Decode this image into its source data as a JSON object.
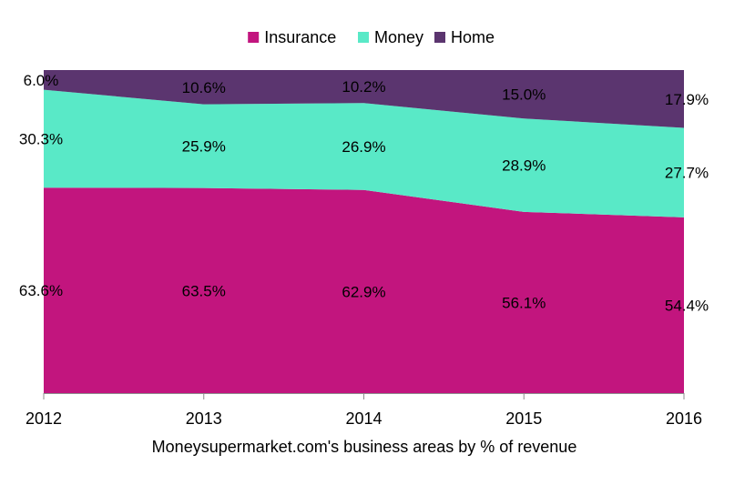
{
  "chart_data": {
    "type": "area",
    "stacked": true,
    "percent_stacked": true,
    "categories": [
      "2012",
      "2013",
      "2014",
      "2015",
      "2016"
    ],
    "series": [
      {
        "name": "Insurance",
        "color": "#C2157E",
        "values": [
          63.6,
          63.5,
          62.9,
          56.1,
          54.4
        ],
        "labels": [
          "63.6%",
          "63.5%",
          "62.9%",
          "56.1%",
          "54.4%"
        ]
      },
      {
        "name": "Money",
        "color": "#59E9C7",
        "values": [
          30.3,
          25.9,
          26.9,
          28.9,
          27.7
        ],
        "labels": [
          "30.3%",
          "25.9%",
          "26.9%",
          "28.9%",
          "27.7%"
        ]
      },
      {
        "name": "Home",
        "color": "#5B356F",
        "values": [
          6.0,
          10.6,
          10.2,
          15.0,
          17.9
        ],
        "labels": [
          "6.0%",
          "10.6%",
          "10.2%",
          "15.0%",
          "17.9%"
        ]
      }
    ],
    "ylim": [
      0,
      100
    ],
    "legend_position": "top",
    "grid": false,
    "caption": "Moneysupermarket.com's business areas by % of revenue",
    "xlabel": "",
    "ylabel": ""
  }
}
